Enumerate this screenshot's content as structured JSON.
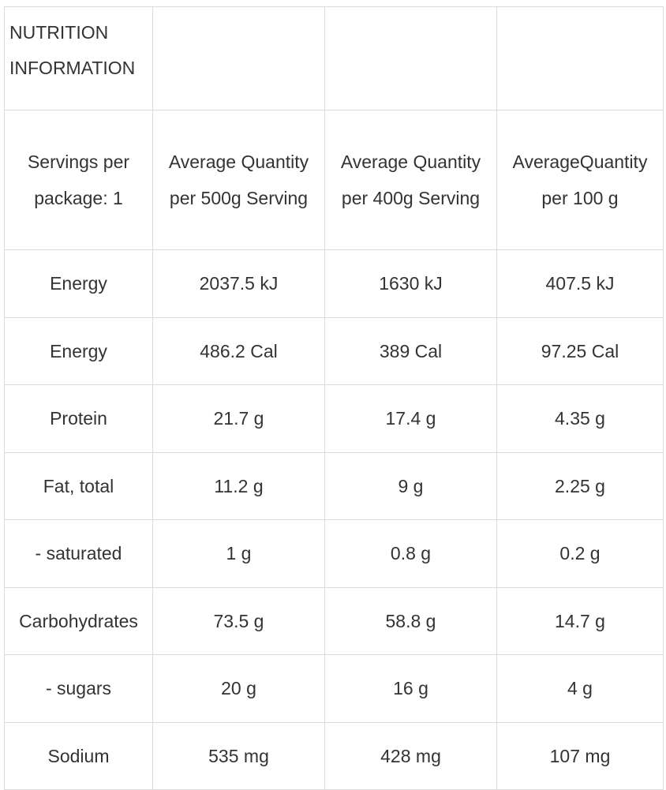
{
  "table": {
    "title": "NUTRITION INFORMATION",
    "header": [
      "Servings per package: 1",
      "Average Quantity per 500g Serving",
      "Average Quantity per 400g Serving",
      "AverageQuantity per 100 g"
    ],
    "rows": [
      [
        "Energy",
        "2037.5 kJ",
        "1630 kJ",
        "407.5 kJ"
      ],
      [
        "Energy",
        "486.2 Cal",
        "389 Cal",
        "97.25 Cal"
      ],
      [
        "Protein",
        "21.7 g",
        "17.4 g",
        "4.35 g"
      ],
      [
        "Fat, total",
        "11.2 g",
        "9 g",
        "2.25 g"
      ],
      [
        "- saturated",
        "1 g",
        "0.8 g",
        "0.2 g"
      ],
      [
        "Carbohydrates",
        "73.5 g",
        "58.8 g",
        "14.7 g"
      ],
      [
        "- sugars",
        "20 g",
        "16 g",
        "4 g"
      ],
      [
        "Sodium",
        "535 mg",
        "428 mg",
        "107 mg"
      ]
    ]
  }
}
